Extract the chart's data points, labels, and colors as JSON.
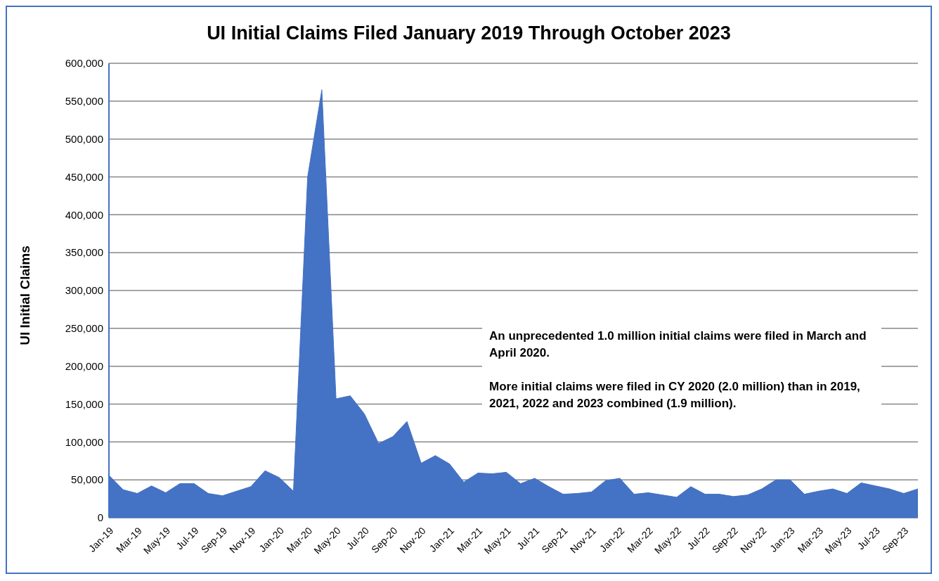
{
  "chart_data": {
    "type": "area",
    "title": "UI Initial Claims Filed January 2019 Through October 2023",
    "ylabel": "UI Initial Claims",
    "categories": [
      "Jan-19",
      null,
      "Mar-19",
      null,
      "May-19",
      null,
      "Jul-19",
      null,
      "Sep-19",
      null,
      "Nov-19",
      null,
      "Jan-20",
      null,
      "Mar-20",
      null,
      "May-20",
      null,
      "Jul-20",
      null,
      "Sep-20",
      null,
      "Nov-20",
      null,
      "Jan-21",
      null,
      "Mar-21",
      null,
      "May-21",
      null,
      "Jul-21",
      null,
      "Sep-21",
      null,
      "Nov-21",
      null,
      "Jan-22",
      null,
      "Mar-22",
      null,
      "May-22",
      null,
      "Jul-22",
      null,
      "Sep-22",
      null,
      "Nov-22",
      null,
      "Jan-23",
      null,
      "Mar-23",
      null,
      "May-23",
      null,
      "Jul-23",
      null,
      "Sep-23",
      null
    ],
    "values": [
      56000,
      37000,
      32000,
      42000,
      33000,
      45000,
      45000,
      32000,
      29000,
      35000,
      41000,
      62000,
      53000,
      35000,
      450000,
      565000,
      157000,
      161000,
      137000,
      98000,
      107000,
      127000,
      72000,
      82000,
      71000,
      47000,
      59000,
      58000,
      60000,
      45000,
      52000,
      41000,
      31000,
      32000,
      34000,
      49000,
      52000,
      31000,
      33000,
      30000,
      27000,
      41000,
      31000,
      31000,
      28000,
      30000,
      38000,
      50000,
      50000,
      31000,
      35000,
      38000,
      32000,
      46000,
      42000,
      38000,
      32000,
      38000
    ],
    "color": "#4472c4",
    "ylim": [
      0,
      600000
    ],
    "yticks": [
      0,
      {
        "value": 50000,
        "label": "50,000"
      },
      {
        "value": 100000,
        "label": "100,000"
      },
      {
        "value": 150000,
        "label": "150,000"
      },
      {
        "value": 200000,
        "label": "200,000"
      },
      {
        "value": 250000,
        "label": "250,000"
      },
      {
        "value": 300000,
        "label": "300,000"
      },
      {
        "value": 350000,
        "label": "350,000"
      },
      {
        "value": 400000,
        "label": "400,000"
      },
      {
        "value": 450000,
        "label": "450,000"
      },
      {
        "value": 500000,
        "label": "500,000"
      },
      {
        "value": 550000,
        "label": "550,000"
      },
      {
        "value": 600000,
        "label": "600,000"
      }
    ],
    "grid": "y",
    "annotations": [
      "An unprecedented 1.0 million initial claims were filed in March and April 2020.",
      "More initial claims were filed in CY 2020 (2.0 million) than in 2019, 2021, 2022 and 2023 combined (1.9 million)."
    ]
  }
}
